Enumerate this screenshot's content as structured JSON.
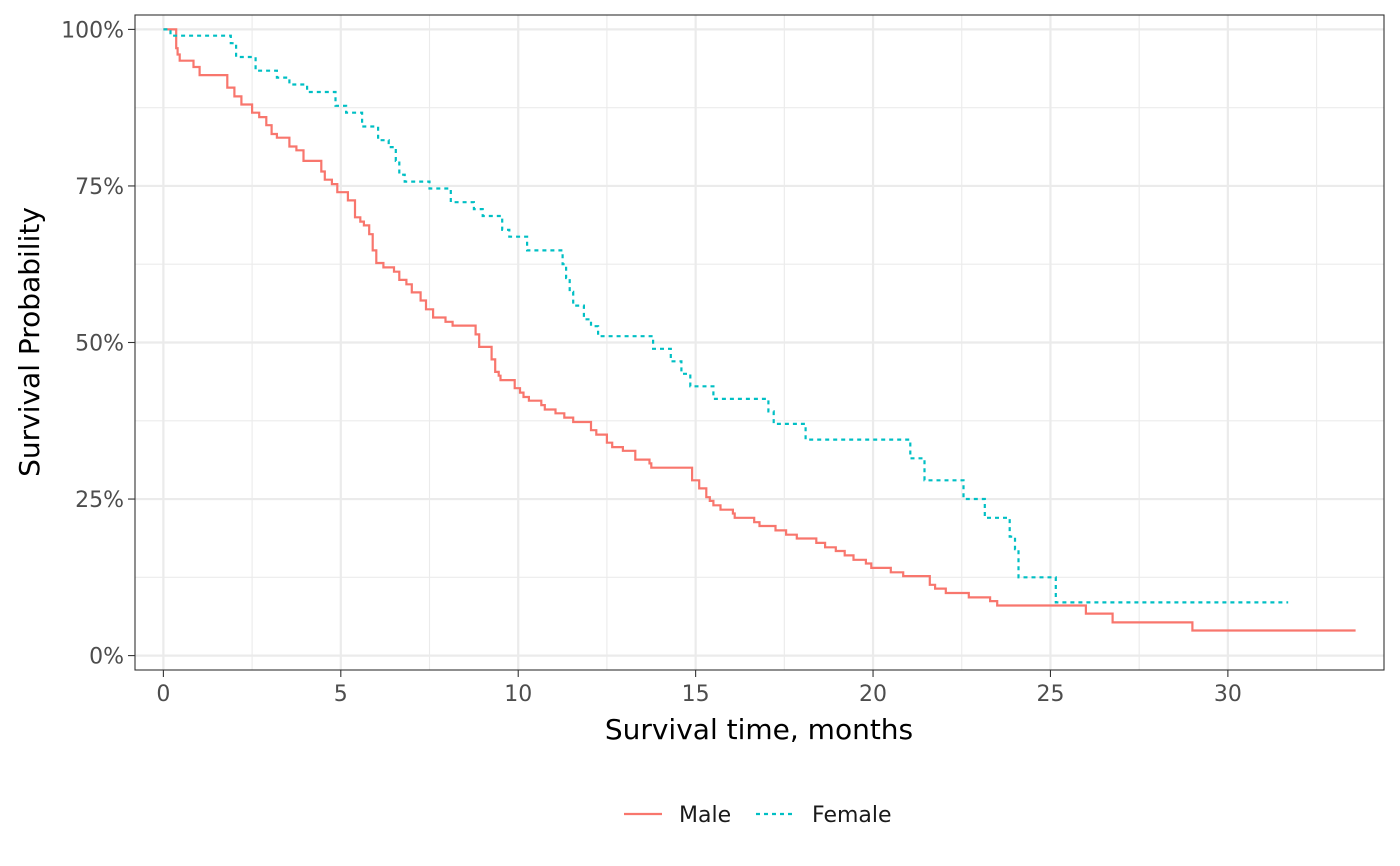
{
  "chart_data": {
    "type": "line",
    "subtype": "step (Kaplan-Meier survival curve)",
    "title": "",
    "xlabel": "Survival time, months",
    "ylabel": "Survival Probability",
    "xlim": [
      -0.8,
      34.4
    ],
    "ylim": [
      -0.023,
      1.023
    ],
    "x_ticks": [
      0,
      5,
      10,
      15,
      20,
      25,
      30
    ],
    "x_tick_labels": [
      "0",
      "5",
      "10",
      "15",
      "20",
      "25",
      "30"
    ],
    "y_ticks": [
      0,
      0.25,
      0.5,
      0.75,
      1.0
    ],
    "y_tick_labels": [
      "0%",
      "25%",
      "50%",
      "75%",
      "100%"
    ],
    "grid": true,
    "legend_position": "bottom",
    "series": [
      {
        "name": "Male",
        "color": "#F8766D",
        "line_style": "solid",
        "points": [
          [
            0,
            1.0
          ],
          [
            0.36,
            0.97
          ],
          [
            0.4,
            0.96
          ],
          [
            0.46,
            0.95
          ],
          [
            0.85,
            0.94
          ],
          [
            1.02,
            0.927
          ],
          [
            1.8,
            0.907
          ],
          [
            2.0,
            0.893
          ],
          [
            2.2,
            0.88
          ],
          [
            2.5,
            0.867
          ],
          [
            2.7,
            0.86
          ],
          [
            2.9,
            0.847
          ],
          [
            3.05,
            0.833
          ],
          [
            3.2,
            0.827
          ],
          [
            3.55,
            0.813
          ],
          [
            3.75,
            0.807
          ],
          [
            3.95,
            0.79
          ],
          [
            4.45,
            0.773
          ],
          [
            4.55,
            0.76
          ],
          [
            4.75,
            0.753
          ],
          [
            4.9,
            0.74
          ],
          [
            5.2,
            0.727
          ],
          [
            5.4,
            0.7
          ],
          [
            5.55,
            0.693
          ],
          [
            5.65,
            0.687
          ],
          [
            5.8,
            0.673
          ],
          [
            5.9,
            0.647
          ],
          [
            6.0,
            0.627
          ],
          [
            6.2,
            0.62
          ],
          [
            6.5,
            0.613
          ],
          [
            6.65,
            0.6
          ],
          [
            6.85,
            0.593
          ],
          [
            7.0,
            0.58
          ],
          [
            7.25,
            0.567
          ],
          [
            7.4,
            0.553
          ],
          [
            7.6,
            0.54
          ],
          [
            7.95,
            0.533
          ],
          [
            8.15,
            0.527
          ],
          [
            8.8,
            0.513
          ],
          [
            8.9,
            0.493
          ],
          [
            9.25,
            0.473
          ],
          [
            9.35,
            0.453
          ],
          [
            9.45,
            0.447
          ],
          [
            9.5,
            0.44
          ],
          [
            9.9,
            0.427
          ],
          [
            10.05,
            0.42
          ],
          [
            10.15,
            0.413
          ],
          [
            10.3,
            0.407
          ],
          [
            10.65,
            0.4
          ],
          [
            10.75,
            0.393
          ],
          [
            11.05,
            0.387
          ],
          [
            11.3,
            0.38
          ],
          [
            11.55,
            0.373
          ],
          [
            12.05,
            0.36
          ],
          [
            12.2,
            0.353
          ],
          [
            12.5,
            0.34
          ],
          [
            12.65,
            0.333
          ],
          [
            12.95,
            0.327
          ],
          [
            13.3,
            0.313
          ],
          [
            13.7,
            0.307
          ],
          [
            13.75,
            0.3
          ],
          [
            14.9,
            0.28
          ],
          [
            15.1,
            0.267
          ],
          [
            15.3,
            0.253
          ],
          [
            15.4,
            0.247
          ],
          [
            15.5,
            0.24
          ],
          [
            15.7,
            0.233
          ],
          [
            16.05,
            0.227
          ],
          [
            16.1,
            0.22
          ],
          [
            16.65,
            0.213
          ],
          [
            16.8,
            0.207
          ],
          [
            17.25,
            0.2
          ],
          [
            17.55,
            0.193
          ],
          [
            17.85,
            0.187
          ],
          [
            18.4,
            0.18
          ],
          [
            18.65,
            0.173
          ],
          [
            18.95,
            0.167
          ],
          [
            19.2,
            0.16
          ],
          [
            19.45,
            0.153
          ],
          [
            19.8,
            0.147
          ],
          [
            19.95,
            0.14
          ],
          [
            20.5,
            0.133
          ],
          [
            20.85,
            0.127
          ],
          [
            21.6,
            0.113
          ],
          [
            21.75,
            0.107
          ],
          [
            22.05,
            0.1
          ],
          [
            22.7,
            0.093
          ],
          [
            23.3,
            0.087
          ],
          [
            23.5,
            0.08
          ],
          [
            26.0,
            0.067
          ],
          [
            26.75,
            0.053
          ],
          [
            29.0,
            0.04
          ],
          [
            33.6,
            0.04
          ]
        ]
      },
      {
        "name": "Female",
        "color": "#00BFC4",
        "line_style": "dashed",
        "points": [
          [
            0,
            1.0
          ],
          [
            0.2,
            0.99
          ],
          [
            1.9,
            0.978
          ],
          [
            2.05,
            0.956
          ],
          [
            2.6,
            0.934
          ],
          [
            3.2,
            0.923
          ],
          [
            3.55,
            0.912
          ],
          [
            4.05,
            0.9
          ],
          [
            4.85,
            0.878
          ],
          [
            5.15,
            0.867
          ],
          [
            5.6,
            0.845
          ],
          [
            6.05,
            0.823
          ],
          [
            6.35,
            0.812
          ],
          [
            6.55,
            0.79
          ],
          [
            6.65,
            0.768
          ],
          [
            6.8,
            0.757
          ],
          [
            7.5,
            0.746
          ],
          [
            8.1,
            0.724
          ],
          [
            8.75,
            0.713
          ],
          [
            9.0,
            0.702
          ],
          [
            9.55,
            0.68
          ],
          [
            9.75,
            0.669
          ],
          [
            10.25,
            0.647
          ],
          [
            11.25,
            0.625
          ],
          [
            11.35,
            0.603
          ],
          [
            11.45,
            0.581
          ],
          [
            11.55,
            0.559
          ],
          [
            11.85,
            0.537
          ],
          [
            12.05,
            0.526
          ],
          [
            12.25,
            0.51
          ],
          [
            13.8,
            0.49
          ],
          [
            14.3,
            0.47
          ],
          [
            14.6,
            0.45
          ],
          [
            14.85,
            0.43
          ],
          [
            15.5,
            0.41
          ],
          [
            17.05,
            0.39
          ],
          [
            17.2,
            0.37
          ],
          [
            18.1,
            0.345
          ],
          [
            21.05,
            0.315
          ],
          [
            21.45,
            0.28
          ],
          [
            22.55,
            0.25
          ],
          [
            23.15,
            0.22
          ],
          [
            23.85,
            0.19
          ],
          [
            24.0,
            0.17
          ],
          [
            24.1,
            0.125
          ],
          [
            25.15,
            0.085
          ],
          [
            31.7,
            0.085
          ]
        ]
      }
    ]
  }
}
